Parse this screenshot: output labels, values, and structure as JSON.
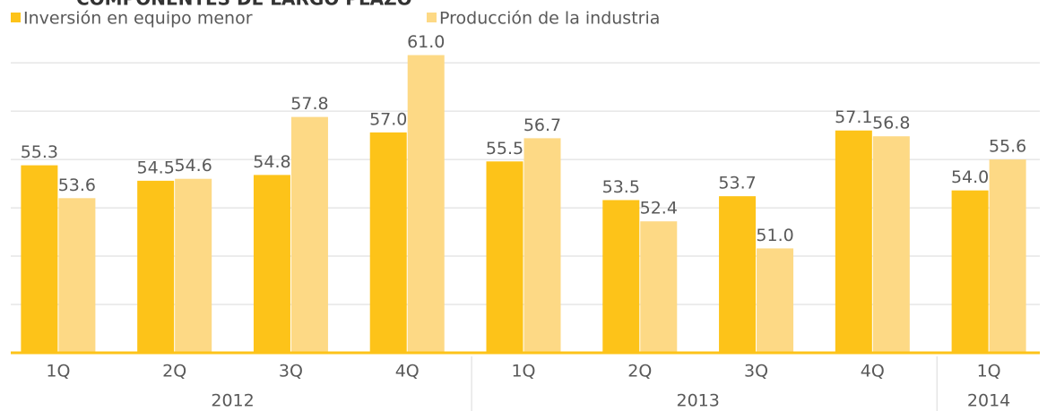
{
  "chart_data": {
    "type": "bar",
    "title": "COMPONENTES DE LARGO PLAZO",
    "categories": [
      "1Q",
      "2Q",
      "3Q",
      "4Q",
      "1Q",
      "2Q",
      "3Q",
      "4Q",
      "1Q"
    ],
    "groups": [
      {
        "label": "2012",
        "span": 4
      },
      {
        "label": "2013",
        "span": 4
      },
      {
        "label": "2014",
        "span": 1
      }
    ],
    "series": [
      {
        "name": "Inversión en equipo menor",
        "color": "#fdc319",
        "values": [
          55.3,
          54.5,
          54.8,
          57.0,
          55.5,
          53.5,
          53.7,
          57.1,
          54.0
        ],
        "value_labels": [
          "55.3",
          "54.5",
          "54.8",
          "57.0",
          "55.5",
          "53.5",
          "53.7",
          "57.1",
          "54.0"
        ]
      },
      {
        "name": "Producción de la industria",
        "color": "#fdd985",
        "values": [
          53.6,
          54.6,
          57.8,
          61.0,
          56.7,
          52.4,
          51.0,
          56.8,
          55.6
        ],
        "value_labels": [
          "53.6",
          "54.6",
          "57.8",
          "61.0",
          "56.7",
          "52.4",
          "51.0",
          "56.8",
          "55.6"
        ]
      }
    ],
    "ylim": [
      45.6,
      62.6
    ],
    "yticks": [
      48.1,
      50.6,
      53.1,
      55.6,
      58.1,
      60.6
    ],
    "grid": true
  }
}
